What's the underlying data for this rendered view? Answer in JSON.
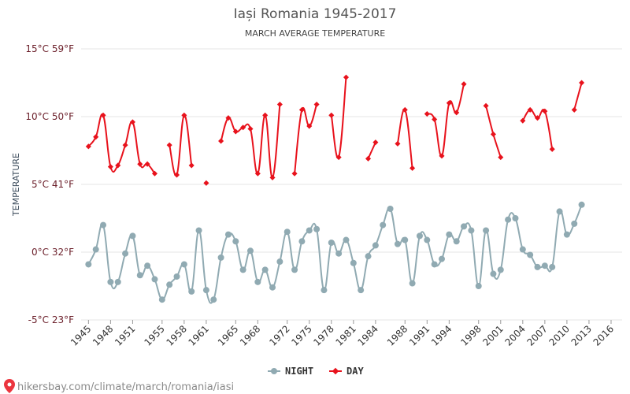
{
  "chart_data": {
    "type": "line",
    "title": "Iași Romania 1945-2017",
    "subtitle": "MARCH AVERAGE TEMPERATURE",
    "ylabel": "TEMPERATURE",
    "xlabel": "",
    "ylim": [
      -5,
      15
    ],
    "xlim": [
      1944,
      2017.5
    ],
    "grid": true,
    "legend_position": "bottom-center",
    "y_ticks": [
      {
        "value": 15,
        "label": "15°C 59°F"
      },
      {
        "value": 10,
        "label": "10°C 50°F"
      },
      {
        "value": 5,
        "label": "5°C 41°F"
      },
      {
        "value": 0,
        "label": "0°C 32°F"
      },
      {
        "value": -5,
        "label": "-5°C 23°F"
      }
    ],
    "x_ticks": [
      {
        "value": 1945,
        "label": "1945"
      },
      {
        "value": 1948,
        "label": "1948"
      },
      {
        "value": 1951,
        "label": "1951"
      },
      {
        "value": 1955,
        "label": "1955"
      },
      {
        "value": 1958,
        "label": "1958"
      },
      {
        "value": 1961,
        "label": "1961"
      },
      {
        "value": 1965,
        "label": "1965"
      },
      {
        "value": 1968,
        "label": "1968"
      },
      {
        "value": 1972,
        "label": "1972"
      },
      {
        "value": 1975,
        "label": "1975"
      },
      {
        "value": 1978,
        "label": "1978"
      },
      {
        "value": 1981,
        "label": "1981"
      },
      {
        "value": 1984,
        "label": "1984"
      },
      {
        "value": 1988,
        "label": "1988"
      },
      {
        "value": 1991,
        "label": "1991"
      },
      {
        "value": 1994,
        "label": "1994"
      },
      {
        "value": 1998,
        "label": "1998"
      },
      {
        "value": 2001,
        "label": "2001"
      },
      {
        "value": 2004,
        "label": "2004"
      },
      {
        "value": 2007,
        "label": "2007"
      },
      {
        "value": 2010,
        "label": "2010"
      },
      {
        "value": 2013,
        "label": "2013"
      },
      {
        "value": 2016,
        "label": "2016"
      }
    ],
    "series": [
      {
        "name": "NIGHT",
        "color": "#90aab2",
        "marker": "circle",
        "points": [
          [
            1945,
            -0.9
          ],
          [
            1946,
            0.2
          ],
          [
            1947,
            2.0
          ],
          [
            1948,
            -2.2
          ],
          [
            1949,
            -2.2
          ],
          [
            1950,
            -0.1
          ],
          [
            1951,
            1.2
          ],
          [
            1952,
            -1.7
          ],
          [
            1953,
            -1.0
          ],
          [
            1954,
            -2.0
          ],
          [
            1955,
            -3.5
          ],
          [
            1956,
            -2.4
          ],
          [
            1957,
            -1.8
          ],
          [
            1958,
            -0.9
          ],
          [
            1959,
            -2.9
          ],
          [
            1960,
            1.6
          ],
          [
            1961,
            -2.8
          ],
          [
            1962,
            -3.5
          ],
          [
            1963,
            -0.4
          ],
          [
            1964,
            1.3
          ],
          [
            1965,
            0.8
          ],
          [
            1966,
            -1.3
          ],
          [
            1967,
            0.1
          ],
          [
            1968,
            -2.2
          ],
          [
            1969,
            -1.3
          ],
          [
            1970,
            -2.6
          ],
          [
            1971,
            -0.7
          ],
          [
            1972,
            1.5
          ],
          [
            1973,
            -1.3
          ],
          [
            1974,
            0.8
          ],
          [
            1975,
            1.6
          ],
          [
            1976,
            1.7
          ],
          [
            1977,
            -2.8
          ],
          [
            1978,
            0.7
          ],
          [
            1979,
            -0.1
          ],
          [
            1980,
            0.9
          ],
          [
            1981,
            -0.8
          ],
          [
            1982,
            -2.8
          ],
          [
            1983,
            -0.3
          ],
          [
            1984,
            0.5
          ],
          [
            1985,
            2.0
          ],
          [
            1986,
            3.2
          ],
          [
            1987,
            0.6
          ],
          [
            1988,
            0.9
          ],
          [
            1989,
            -2.3
          ],
          [
            1990,
            1.2
          ],
          [
            1991,
            0.9
          ],
          [
            1992,
            -0.9
          ],
          [
            1993,
            -0.5
          ],
          [
            1994,
            1.3
          ],
          [
            1995,
            0.8
          ],
          [
            1996,
            1.9
          ],
          [
            1997,
            1.6
          ],
          [
            1998,
            -2.5
          ],
          [
            1999,
            1.6
          ],
          [
            2000,
            -1.6
          ],
          [
            2001,
            -1.3
          ],
          [
            2002,
            2.4
          ],
          [
            2003,
            2.5
          ],
          [
            2004,
            0.2
          ],
          [
            2005,
            -0.2
          ],
          [
            2006,
            -1.1
          ],
          [
            2007,
            -1.0
          ],
          [
            2008,
            -1.1
          ],
          [
            2009,
            3.0
          ],
          [
            2010,
            1.3
          ],
          [
            2011,
            2.1
          ],
          [
            2012,
            3.5
          ]
        ]
      },
      {
        "name": "DAY",
        "color": "#e8121c",
        "marker": "diamond",
        "points": [
          [
            1945,
            7.8
          ],
          [
            1946,
            8.5
          ],
          [
            1947,
            10.1
          ],
          [
            1948,
            6.3
          ],
          [
            1949,
            6.4
          ],
          [
            1950,
            7.9
          ],
          [
            1951,
            9.6
          ],
          [
            1952,
            6.5
          ],
          [
            1953,
            6.5
          ],
          [
            1954,
            5.8
          ],
          [
            1955,
            null
          ],
          [
            1956,
            7.9
          ],
          [
            1957,
            5.7
          ],
          [
            1958,
            10.1
          ],
          [
            1959,
            6.4
          ],
          [
            1960,
            null
          ],
          [
            1961,
            5.1
          ],
          [
            1962,
            null
          ],
          [
            1963,
            8.2
          ],
          [
            1964,
            9.9
          ],
          [
            1965,
            8.9
          ],
          [
            1966,
            9.2
          ],
          [
            1967,
            9.1
          ],
          [
            1968,
            5.8
          ],
          [
            1969,
            10.1
          ],
          [
            1970,
            5.5
          ],
          [
            1971,
            10.9
          ],
          [
            1972,
            null
          ],
          [
            1973,
            5.8
          ],
          [
            1974,
            10.5
          ],
          [
            1975,
            9.3
          ],
          [
            1976,
            10.9
          ],
          [
            1977,
            null
          ],
          [
            1978,
            10.1
          ],
          [
            1979,
            7.0
          ],
          [
            1980,
            12.9
          ],
          [
            1981,
            null
          ],
          [
            1982,
            null
          ],
          [
            1983,
            6.9
          ],
          [
            1984,
            8.1
          ],
          [
            1985,
            null
          ],
          [
            1986,
            null
          ],
          [
            1987,
            8.0
          ],
          [
            1988,
            10.5
          ],
          [
            1989,
            6.2
          ],
          [
            1990,
            null
          ],
          [
            1991,
            10.2
          ],
          [
            1992,
            9.8
          ],
          [
            1993,
            7.1
          ],
          [
            1994,
            11.0
          ],
          [
            1995,
            10.3
          ],
          [
            1996,
            12.4
          ],
          [
            1997,
            null
          ],
          [
            1998,
            null
          ],
          [
            1999,
            10.8
          ],
          [
            2000,
            8.7
          ],
          [
            2001,
            7.0
          ],
          [
            2002,
            null
          ],
          [
            2003,
            null
          ],
          [
            2004,
            9.7
          ],
          [
            2005,
            10.5
          ],
          [
            2006,
            9.9
          ],
          [
            2007,
            10.4
          ],
          [
            2008,
            7.6
          ],
          [
            2009,
            null
          ],
          [
            2010,
            null
          ],
          [
            2011,
            10.5
          ],
          [
            2012,
            12.5
          ]
        ]
      }
    ]
  },
  "watermark": {
    "text": "hikersbay.com/climate/march/romania/iasi"
  }
}
